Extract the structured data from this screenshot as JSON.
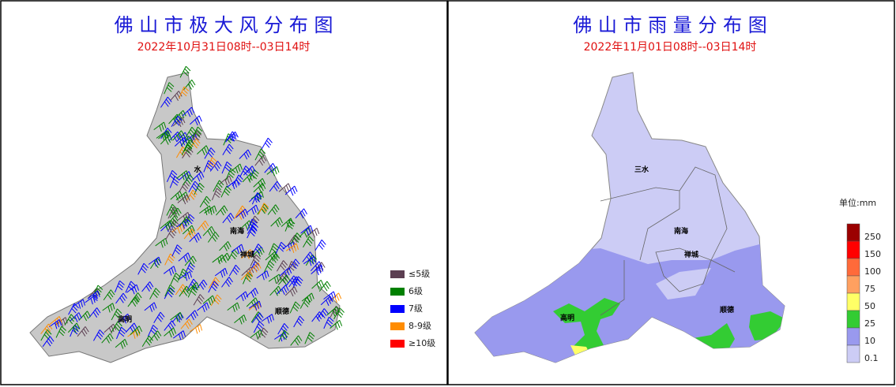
{
  "panels": [
    {
      "title": "佛 山 市 极 大 风 分 布 图",
      "subtitle": "2022年10月31日08时--03日14时",
      "places": [
        "水",
        "南海",
        "禅城",
        "高明",
        "顺德"
      ],
      "legend": [
        {
          "label": "≤5级",
          "color": "#5c3f52"
        },
        {
          "label": "6级",
          "color": "#008000"
        },
        {
          "label": "7级",
          "color": "#0000ff"
        },
        {
          "label": "8-9级",
          "color": "#ff8c00"
        },
        {
          "label": "≥10级",
          "color": "#ff0000"
        }
      ]
    },
    {
      "title": "佛 山 市 雨 量 分 布 图",
      "subtitle": "2022年11月01日08时--03日14时",
      "places": [
        "三水",
        "南海",
        "禅城",
        "高明",
        "顺德"
      ],
      "unit": "单位:mm",
      "legend": [
        {
          "label": "250",
          "color": "#9b0000"
        },
        {
          "label": "150",
          "color": "#ff0000"
        },
        {
          "label": "100",
          "color": "#ff6a3a"
        },
        {
          "label": "75",
          "color": "#ffa060"
        },
        {
          "label": "50",
          "color": "#ffff66"
        },
        {
          "label": "25",
          "color": "#33cc33"
        },
        {
          "label": "10",
          "color": "#9999ee"
        },
        {
          "label": "0.1",
          "color": "#ccccf5"
        }
      ]
    }
  ]
}
